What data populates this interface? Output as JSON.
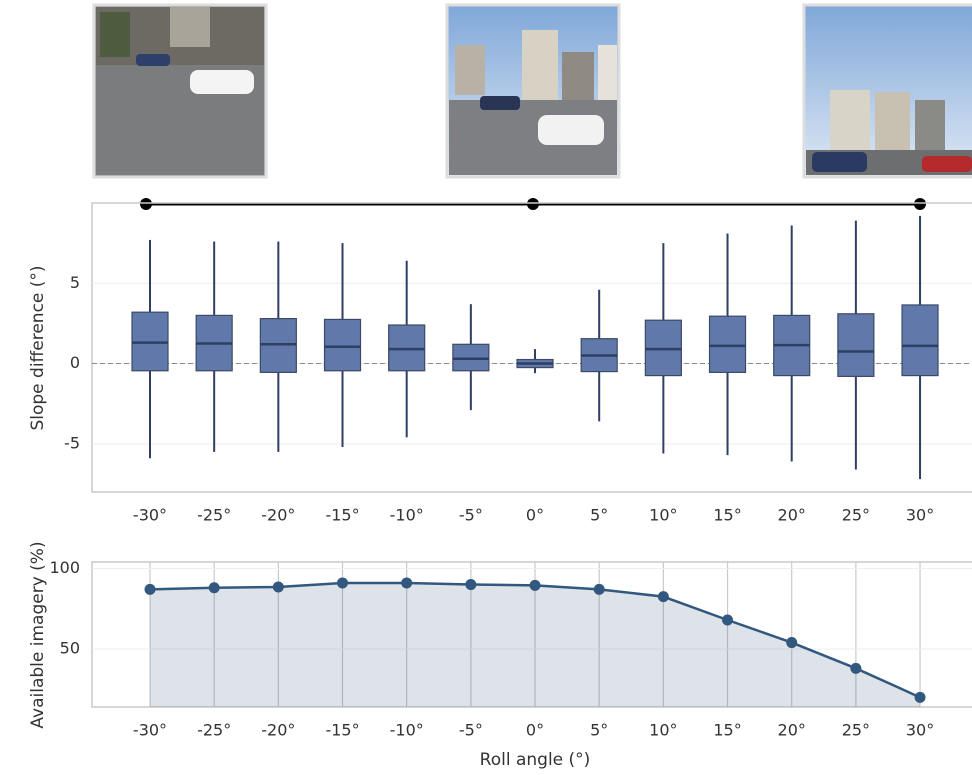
{
  "chart_data": [
    {
      "type": "box",
      "ylabel": "Slope difference (°)",
      "categories": [
        "-30°",
        "-25°",
        "-20°",
        "-15°",
        "-10°",
        "-5°",
        "0°",
        "5°",
        "10°",
        "15°",
        "20°",
        "25°",
        "30°"
      ],
      "boxes": [
        {
          "whislo": -5.9,
          "q1": -0.45,
          "med": 1.3,
          "q3": 3.2,
          "whishi": 7.7
        },
        {
          "whislo": -5.5,
          "q1": -0.45,
          "med": 1.25,
          "q3": 3.0,
          "whishi": 7.6
        },
        {
          "whislo": -5.5,
          "q1": -0.55,
          "med": 1.2,
          "q3": 2.8,
          "whishi": 7.6
        },
        {
          "whislo": -5.2,
          "q1": -0.45,
          "med": 1.05,
          "q3": 2.75,
          "whishi": 7.5
        },
        {
          "whislo": -4.6,
          "q1": -0.45,
          "med": 0.9,
          "q3": 2.4,
          "whishi": 6.4
        },
        {
          "whislo": -2.9,
          "q1": -0.45,
          "med": 0.3,
          "q3": 1.2,
          "whishi": 3.7
        },
        {
          "whislo": -0.6,
          "q1": -0.25,
          "med": 0.0,
          "q3": 0.25,
          "whishi": 0.9
        },
        {
          "whislo": -3.6,
          "q1": -0.5,
          "med": 0.5,
          "q3": 1.55,
          "whishi": 4.6
        },
        {
          "whislo": -5.6,
          "q1": -0.75,
          "med": 0.9,
          "q3": 2.7,
          "whishi": 7.5
        },
        {
          "whislo": -5.7,
          "q1": -0.55,
          "med": 1.1,
          "q3": 2.95,
          "whishi": 8.1
        },
        {
          "whislo": -6.1,
          "q1": -0.75,
          "med": 1.15,
          "q3": 3.0,
          "whishi": 8.6
        },
        {
          "whislo": -6.6,
          "q1": -0.8,
          "med": 0.75,
          "q3": 3.1,
          "whishi": 8.9
        },
        {
          "whislo": -7.2,
          "q1": -0.75,
          "med": 1.1,
          "q3": 3.65,
          "whishi": 9.2
        }
      ],
      "color": "#6178ab",
      "edge_color": "#2e3f63",
      "ylim": [
        -8,
        10
      ],
      "yticks": [
        -5,
        0,
        5
      ],
      "reference_line": 0,
      "grid": "y"
    },
    {
      "type": "line",
      "xlabel": "Roll angle (°)",
      "ylabel": "Available imagery (%)",
      "categories": [
        "-30°",
        "-25°",
        "-20°",
        "-15°",
        "-10°",
        "-5°",
        "0°",
        "5°",
        "10°",
        "15°",
        "20°",
        "25°",
        "30°"
      ],
      "values": [
        87,
        88,
        88.5,
        91,
        91,
        90,
        89.5,
        87,
        82.5,
        68,
        54,
        38,
        20
      ],
      "color": "#33587f",
      "fill": true,
      "ylim": [
        14,
        104
      ],
      "yticks": [
        50,
        100
      ],
      "grid": "x"
    }
  ]
}
